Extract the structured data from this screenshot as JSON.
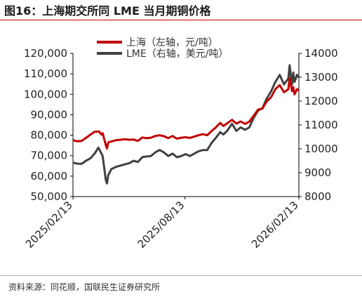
{
  "title": "图16：上海期交所同 LME 当月期铜价格",
  "source": "资料来源：同花顺，国联民生证券研究所",
  "colors": {
    "shanghai": "#c00000",
    "lme": "#404040",
    "axis": "#000000",
    "rule": "#c00000"
  },
  "chart_data": {
    "type": "line",
    "legend_position": "top-center",
    "grid": false,
    "x_type": "date",
    "xlim": [
      "2025-02-13",
      "2026-02-13"
    ],
    "x_ticks": [
      "2025/02/13",
      "2025/08/13",
      "2026/02/13"
    ],
    "y_left": {
      "lim": [
        50000,
        120000
      ],
      "ticks": [
        "50,000",
        "60,000",
        "70,000",
        "80,000",
        "90,000",
        "100,000",
        "110,000",
        "120,000"
      ]
    },
    "y_right": {
      "lim": [
        8000,
        14000
      ],
      "ticks": [
        "8000",
        "9000",
        "10000",
        "11000",
        "12000",
        "13000",
        "14000"
      ]
    },
    "series": [
      {
        "name": "上海（左轴，元/吨）",
        "axis": "left",
        "points": [
          [
            "2025-02-13",
            77600
          ],
          [
            "2025-02-20",
            77000
          ],
          [
            "2025-02-27",
            77200
          ],
          [
            "2025-03-06",
            78700
          ],
          [
            "2025-03-13",
            80200
          ],
          [
            "2025-03-20",
            81700
          ],
          [
            "2025-03-27",
            81800
          ],
          [
            "2025-03-31",
            80300
          ],
          [
            "2025-04-02",
            81000
          ],
          [
            "2025-04-04",
            78800
          ],
          [
            "2025-04-07",
            75200
          ],
          [
            "2025-04-09",
            73500
          ],
          [
            "2025-04-11",
            76500
          ],
          [
            "2025-04-16",
            76900
          ],
          [
            "2025-04-24",
            77600
          ],
          [
            "2025-05-08",
            78000
          ],
          [
            "2025-05-15",
            77800
          ],
          [
            "2025-05-22",
            77900
          ],
          [
            "2025-05-29",
            77200
          ],
          [
            "2025-06-05",
            78900
          ],
          [
            "2025-06-12",
            78500
          ],
          [
            "2025-06-19",
            78800
          ],
          [
            "2025-06-26",
            79600
          ],
          [
            "2025-07-03",
            80000
          ],
          [
            "2025-07-10",
            79500
          ],
          [
            "2025-07-17",
            78600
          ],
          [
            "2025-07-24",
            79600
          ],
          [
            "2025-07-31",
            78300
          ],
          [
            "2025-08-07",
            78800
          ],
          [
            "2025-08-14",
            79000
          ],
          [
            "2025-08-21",
            78700
          ],
          [
            "2025-08-28",
            79300
          ],
          [
            "2025-09-04",
            80000
          ],
          [
            "2025-09-11",
            80500
          ],
          [
            "2025-09-18",
            80000
          ],
          [
            "2025-09-25",
            82000
          ],
          [
            "2025-09-30",
            83300
          ],
          [
            "2025-10-09",
            86000
          ],
          [
            "2025-10-14",
            84500
          ],
          [
            "2025-10-20",
            85800
          ],
          [
            "2025-10-28",
            87500
          ],
          [
            "2025-11-04",
            85700
          ],
          [
            "2025-11-11",
            86700
          ],
          [
            "2025-11-18",
            85500
          ],
          [
            "2025-11-25",
            86600
          ],
          [
            "2025-12-02",
            89500
          ],
          [
            "2025-12-09",
            92500
          ],
          [
            "2025-12-16",
            93000
          ],
          [
            "2025-12-23",
            96500
          ],
          [
            "2025-12-30",
            98500
          ],
          [
            "2026-01-06",
            102500
          ],
          [
            "2026-01-13",
            104500
          ],
          [
            "2026-01-20",
            101000
          ],
          [
            "2026-01-27",
            102500
          ],
          [
            "2026-01-29",
            108000
          ],
          [
            "2026-02-02",
            101500
          ],
          [
            "2026-02-04",
            103500
          ],
          [
            "2026-02-06",
            100000
          ],
          [
            "2026-02-10",
            102500
          ],
          [
            "2026-02-13",
            101800
          ]
        ]
      },
      {
        "name": "LME（右轴，美元/吨）",
        "axis": "right",
        "points": [
          [
            "2025-02-13",
            9420
          ],
          [
            "2025-02-20",
            9380
          ],
          [
            "2025-02-27",
            9370
          ],
          [
            "2025-03-06",
            9500
          ],
          [
            "2025-03-13",
            9600
          ],
          [
            "2025-03-20",
            9800
          ],
          [
            "2025-03-26",
            10050
          ],
          [
            "2025-03-31",
            9800
          ],
          [
            "2025-04-02",
            9700
          ],
          [
            "2025-04-04",
            9300
          ],
          [
            "2025-04-07",
            8700
          ],
          [
            "2025-04-09",
            8550
          ],
          [
            "2025-04-11",
            8900
          ],
          [
            "2025-04-16",
            9150
          ],
          [
            "2025-04-24",
            9250
          ],
          [
            "2025-05-08",
            9350
          ],
          [
            "2025-05-15",
            9400
          ],
          [
            "2025-05-22",
            9500
          ],
          [
            "2025-05-29",
            9450
          ],
          [
            "2025-06-05",
            9650
          ],
          [
            "2025-06-12",
            9680
          ],
          [
            "2025-06-19",
            9700
          ],
          [
            "2025-06-26",
            9850
          ],
          [
            "2025-07-03",
            9950
          ],
          [
            "2025-07-10",
            9850
          ],
          [
            "2025-07-17",
            9700
          ],
          [
            "2025-07-24",
            9800
          ],
          [
            "2025-07-31",
            9650
          ],
          [
            "2025-08-07",
            9700
          ],
          [
            "2025-08-14",
            9780
          ],
          [
            "2025-08-21",
            9700
          ],
          [
            "2025-08-28",
            9800
          ],
          [
            "2025-09-04",
            9900
          ],
          [
            "2025-09-11",
            9950
          ],
          [
            "2025-09-18",
            9950
          ],
          [
            "2025-09-25",
            10250
          ],
          [
            "2025-09-30",
            10400
          ],
          [
            "2025-10-09",
            10700
          ],
          [
            "2025-10-14",
            10600
          ],
          [
            "2025-10-20",
            10750
          ],
          [
            "2025-10-28",
            11050
          ],
          [
            "2025-11-04",
            10750
          ],
          [
            "2025-11-11",
            10900
          ],
          [
            "2025-11-18",
            10800
          ],
          [
            "2025-11-25",
            10900
          ],
          [
            "2025-12-02",
            11300
          ],
          [
            "2025-12-09",
            11600
          ],
          [
            "2025-12-16",
            11700
          ],
          [
            "2025-12-23",
            12100
          ],
          [
            "2025-12-30",
            12400
          ],
          [
            "2026-01-06",
            12800
          ],
          [
            "2026-01-13",
            13100
          ],
          [
            "2026-01-20",
            12700
          ],
          [
            "2026-01-27",
            12950
          ],
          [
            "2026-01-29",
            13500
          ],
          [
            "2026-02-02",
            12700
          ],
          [
            "2026-02-04",
            13200
          ],
          [
            "2026-02-06",
            12800
          ],
          [
            "2026-02-10",
            13100
          ],
          [
            "2026-02-13",
            13000
          ]
        ]
      }
    ]
  }
}
